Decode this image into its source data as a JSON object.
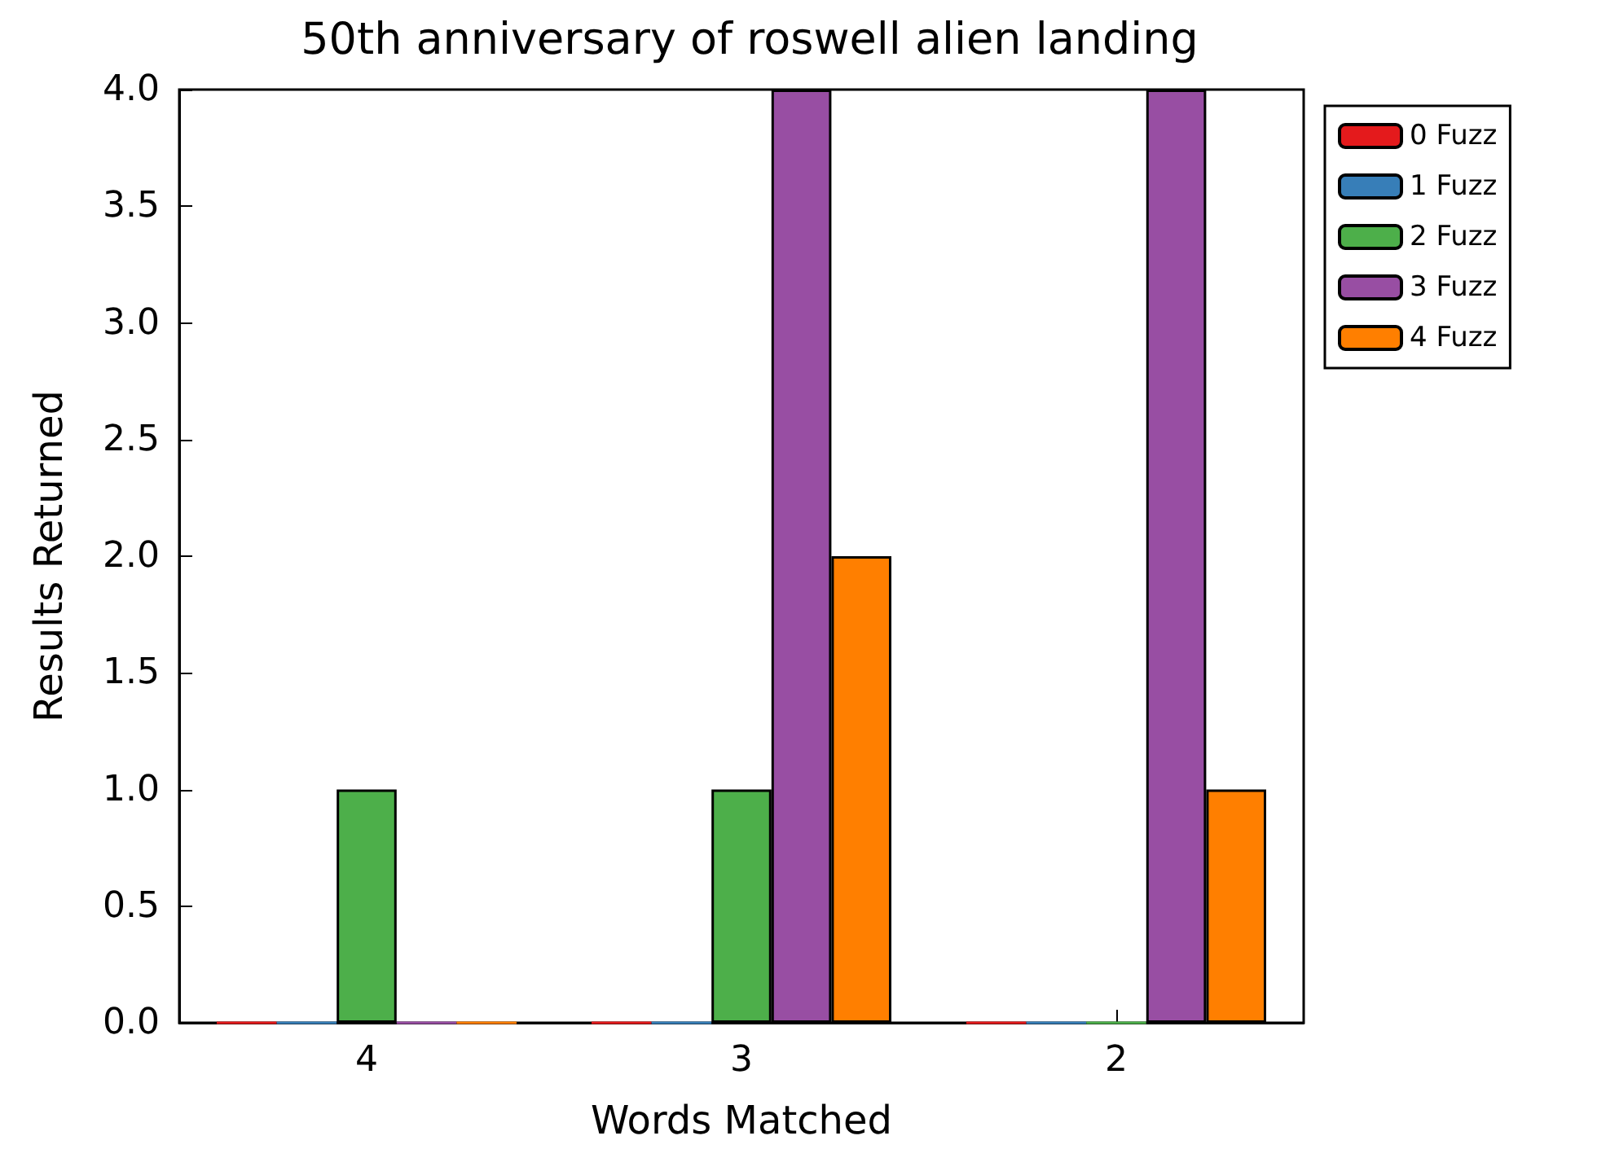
{
  "chart_data": {
    "type": "bar",
    "title": "50th anniversary of roswell alien landing",
    "xlabel": "Words Matched",
    "ylabel": "Results Returned",
    "categories": [
      "4",
      "3",
      "2"
    ],
    "series": [
      {
        "name": "0 Fuzz",
        "color": "#e41a1c",
        "values": [
          0,
          0,
          0
        ]
      },
      {
        "name": "1 Fuzz",
        "color": "#377eb8",
        "values": [
          0,
          0,
          0
        ]
      },
      {
        "name": "2 Fuzz",
        "color": "#4daf4a",
        "values": [
          1,
          1,
          0
        ]
      },
      {
        "name": "3 Fuzz",
        "color": "#984ea3",
        "values": [
          0,
          4,
          4
        ]
      },
      {
        "name": "4 Fuzz",
        "color": "#ff7f00",
        "values": [
          0,
          2,
          1
        ]
      }
    ],
    "ylim": [
      0,
      4
    ],
    "yticks": [
      {
        "value": 0,
        "label": "0.0"
      },
      {
        "value": 0.5,
        "label": "0.5"
      },
      {
        "value": 1,
        "label": "1.0"
      },
      {
        "value": 1.5,
        "label": "1.5"
      },
      {
        "value": 2,
        "label": "2.0"
      },
      {
        "value": 2.5,
        "label": "2.5"
      },
      {
        "value": 3,
        "label": "3.0"
      },
      {
        "value": 3.5,
        "label": "3.5"
      },
      {
        "value": 4,
        "label": "4.0"
      }
    ],
    "grid": false,
    "legend": "right"
  }
}
